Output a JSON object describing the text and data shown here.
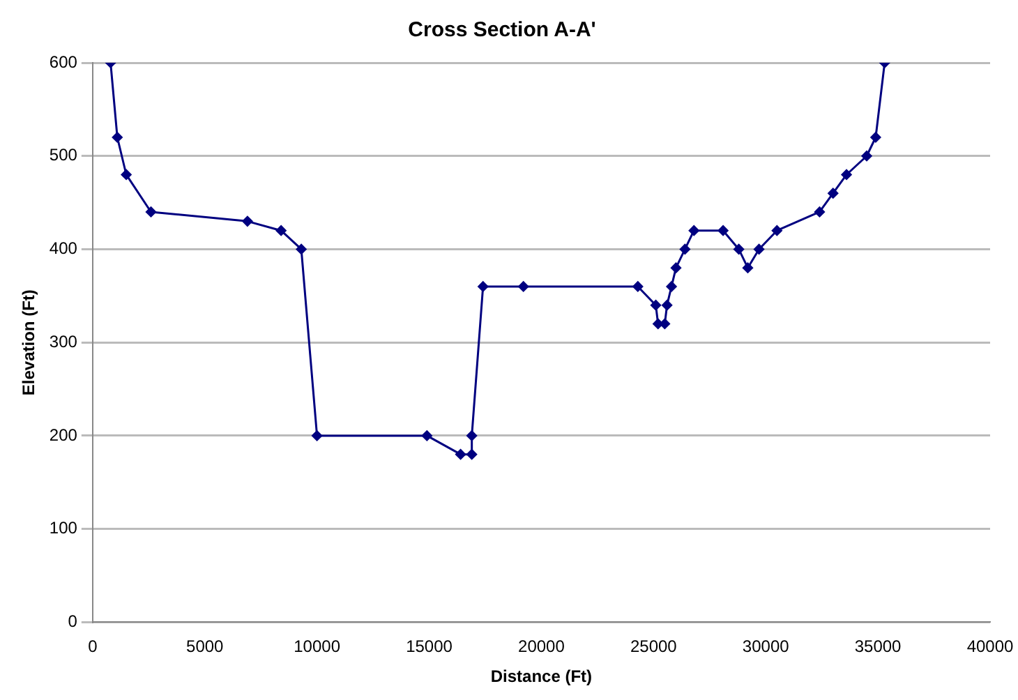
{
  "chart_data": {
    "type": "line",
    "title": "Cross Section A-A'",
    "xlabel": "Distance (Ft)",
    "ylabel": "Elevation (Ft)",
    "x": [
      800,
      1100,
      1500,
      2600,
      6900,
      8400,
      9300,
      10000,
      14900,
      16400,
      16900,
      16900,
      17400,
      19200,
      24300,
      25100,
      25200,
      25500,
      25600,
      25800,
      26000,
      26400,
      26800,
      28100,
      28800,
      29200,
      29700,
      30500,
      32400,
      33000,
      33600,
      34500,
      34900,
      35300
    ],
    "series": [
      {
        "color": "#000080",
        "values": [
          600,
          520,
          480,
          440,
          430,
          420,
          400,
          200,
          200,
          180,
          180,
          200,
          360,
          360,
          360,
          340,
          320,
          320,
          340,
          360,
          380,
          400,
          420,
          420,
          400,
          380,
          400,
          420,
          440,
          460,
          480,
          500,
          520,
          600
        ]
      }
    ],
    "xlim": [
      0,
      40000
    ],
    "xticks": [
      0,
      5000,
      10000,
      15000,
      20000,
      25000,
      30000,
      35000,
      40000
    ],
    "ylim": [
      0,
      600
    ],
    "yticks": [
      0,
      100,
      200,
      300,
      400,
      500,
      600
    ],
    "grid": "y",
    "legend": false,
    "marker": "diamond",
    "line_style": "solid"
  }
}
